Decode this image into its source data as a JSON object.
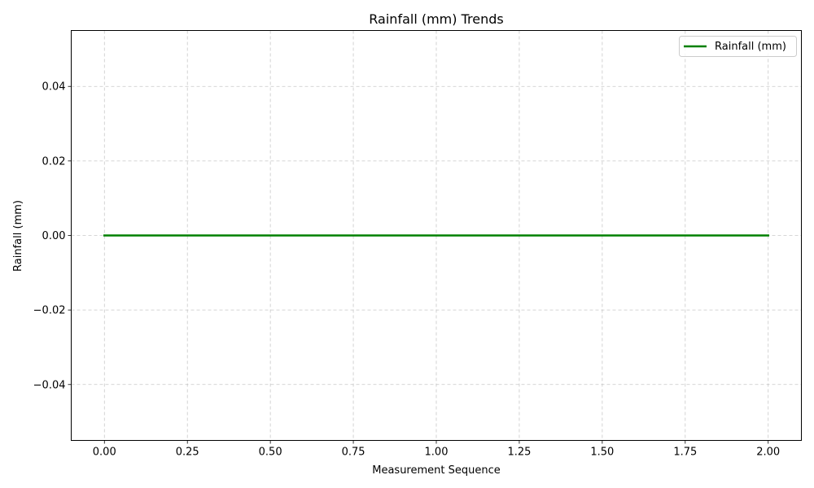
{
  "chart_data": {
    "type": "line",
    "title": "Rainfall (mm) Trends",
    "xlabel": "Measurement Sequence",
    "ylabel": "Rainfall (mm)",
    "xlim": [
      -0.1,
      2.1
    ],
    "ylim": [
      -0.055,
      0.055
    ],
    "x_ticks": [
      0.0,
      0.25,
      0.5,
      0.75,
      1.0,
      1.25,
      1.5,
      1.75,
      2.0
    ],
    "x_tick_labels": [
      "0.00",
      "0.25",
      "0.50",
      "0.75",
      "1.00",
      "1.25",
      "1.50",
      "1.75",
      "2.00"
    ],
    "y_ticks": [
      -0.04,
      -0.02,
      0.0,
      0.02,
      0.04
    ],
    "y_tick_labels": [
      "−0.04",
      "−0.02",
      "0.00",
      "0.02",
      "0.04"
    ],
    "grid": true,
    "legend_position": "top-right",
    "series": [
      {
        "name": "Rainfall (mm)",
        "color": "#008000",
        "x": [
          0,
          1,
          2
        ],
        "y": [
          0,
          0,
          0
        ]
      }
    ]
  }
}
